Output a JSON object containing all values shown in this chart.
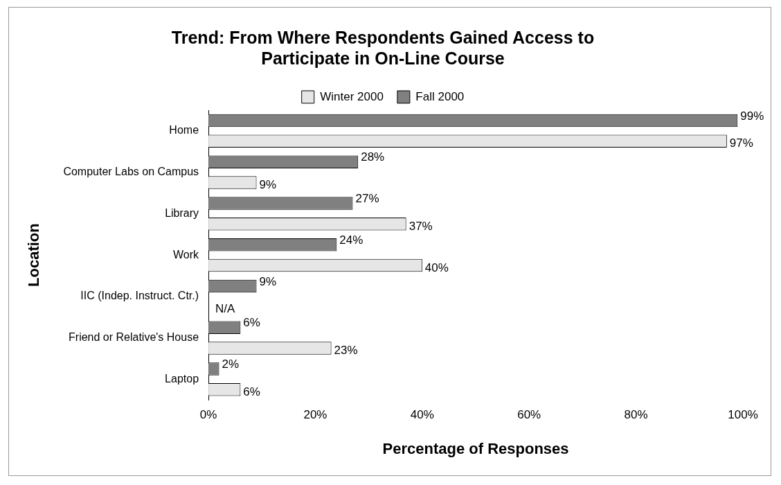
{
  "chart_data": {
    "type": "bar",
    "orientation": "horizontal",
    "title": [
      "Trend: From Where Respondents Gained Access to",
      "Participate in On-Line Course"
    ],
    "ylabel": "Location",
    "xlabel": "Percentage of Responses",
    "categories": [
      "Home",
      "Computer Labs on Campus",
      "Library",
      "Work",
      "IIC (Indep. Instruct. Ctr.)",
      "Friend or Relative's House",
      "Laptop"
    ],
    "series": [
      {
        "name": "Fall 2000",
        "color": "#808080",
        "values": [
          99,
          28,
          27,
          24,
          9,
          6,
          2
        ],
        "value_labels": [
          "99%",
          "28%",
          "27%",
          "24%",
          "9%",
          "6%",
          "2%"
        ]
      },
      {
        "name": "Winter 2000",
        "color": "#e6e6e6",
        "values": [
          97,
          9,
          37,
          40,
          null,
          23,
          6
        ],
        "value_labels": [
          "97%",
          "9%",
          "37%",
          "40%",
          "N/A",
          "23%",
          "6%"
        ]
      }
    ],
    "xlim": [
      0,
      100
    ],
    "xticks": [
      {
        "value": 0,
        "label": "0%"
      },
      {
        "value": 20,
        "label": "20%"
      },
      {
        "value": 40,
        "label": "40%"
      },
      {
        "value": 60,
        "label": "60%"
      },
      {
        "value": 80,
        "label": "80%"
      },
      {
        "value": 100,
        "label": "100%"
      }
    ],
    "grid": false,
    "legend": "top"
  }
}
